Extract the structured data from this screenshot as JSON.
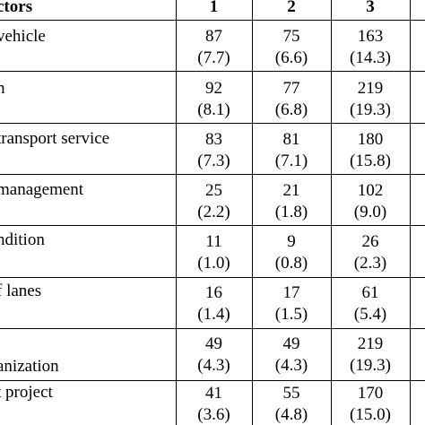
{
  "table": {
    "header": {
      "factor_label": "ctors",
      "columns": [
        "1",
        "2",
        "3"
      ]
    },
    "rows": [
      {
        "factor": [
          "vehicle"
        ],
        "values": [
          [
            "87",
            "(7.7)"
          ],
          [
            "75",
            "(6.6)"
          ],
          [
            "163",
            "(14.3)"
          ]
        ]
      },
      {
        "factor": [
          "h"
        ],
        "values": [
          [
            "92",
            "(8.1)"
          ],
          [
            "77",
            "(6.8)"
          ],
          [
            "219",
            "(19.3)"
          ]
        ]
      },
      {
        "factor": [
          "transport service"
        ],
        "values": [
          [
            "83",
            "(7.3)"
          ],
          [
            "81",
            "(7.1)"
          ],
          [
            "180",
            "(15.8)"
          ]
        ]
      },
      {
        "factor": [
          "management"
        ],
        "values": [
          [
            "25",
            "(2.2)"
          ],
          [
            "21",
            "(1.8)"
          ],
          [
            "102",
            "(9.0)"
          ]
        ]
      },
      {
        "factor": [
          "ndition"
        ],
        "values": [
          [
            "11",
            "(1.0)"
          ],
          [
            "9",
            "(0.8)"
          ],
          [
            "26",
            "(2.3)"
          ]
        ]
      },
      {
        "factor": [
          "f lanes"
        ],
        "values": [
          [
            "16",
            "(1.4)"
          ],
          [
            "17",
            "(1.5)"
          ],
          [
            "61",
            "(5.4)"
          ]
        ]
      },
      {
        "factor": [
          "",
          "anization"
        ],
        "values": [
          [
            "49",
            "(4.3)"
          ],
          [
            "49",
            "(4.3)"
          ],
          [
            "219",
            "(19.3)"
          ]
        ]
      },
      {
        "factor": [
          "t project"
        ],
        "values": [
          [
            "41",
            "(3.6)"
          ],
          [
            "55",
            "(4.8)"
          ],
          [
            "170",
            "(15.0)"
          ]
        ]
      }
    ]
  }
}
